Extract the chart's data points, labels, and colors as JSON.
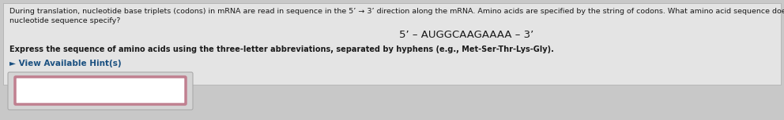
{
  "background_color": "#c8c8c8",
  "panel_color": "#e0e0e0",
  "text_line1": "During translation, nucleotide base triplets (codons) in mRNA are read in sequence in the 5’ → 3’ direction along the mRNA. Amino acids are specified by the string of codons. What amino acid sequence does the following mRNA",
  "text_line2": "nucleotide sequence specify?",
  "mrna_text": "5’ – AUGGCAAGAAAA – 3’",
  "bold_text": "Express the sequence of amino acids using the three-letter abbreviations, separated by hyphens (e.g., Met-Ser-Thr-Lys-Gly).",
  "hint_text": "► View Available Hint(s)",
  "input_box_border_color": "#c08090",
  "input_box_fill": "#ffffff",
  "outer_box_fill": "#d8d8d8",
  "outer_box_border": "#b8b8b8",
  "font_size_body": 6.8,
  "font_size_mrna": 9.5,
  "font_size_bold": 7.0,
  "font_size_hint": 7.5,
  "text_color": "#1a1a1a",
  "hint_color": "#1a5080"
}
